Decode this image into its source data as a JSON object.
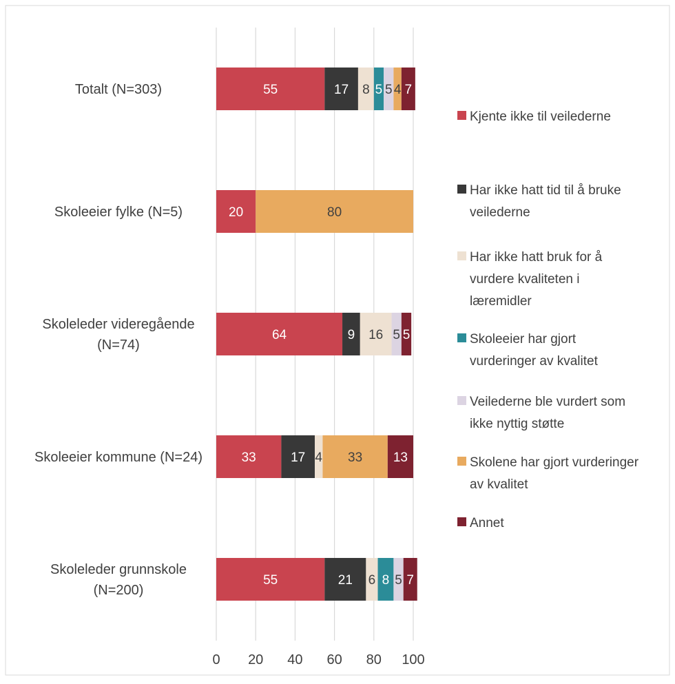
{
  "chart_data": {
    "type": "bar",
    "orientation": "horizontal",
    "stacked": true,
    "categories": [
      [
        "Totalt (N=303)"
      ],
      [
        "Skoleeier fylke (N=5)"
      ],
      [
        "Skoleleder videregående",
        "(N=74)"
      ],
      [
        "Skoleeier kommune (N=24)"
      ],
      [
        "Skoleleder grunnskole",
        "(N=200)"
      ]
    ],
    "series": [
      {
        "name": [
          "Kjente ikke til veilederne"
        ],
        "color": "#C9444F",
        "label_color": "#ffffff",
        "values": [
          55,
          20,
          64,
          33,
          55
        ]
      },
      {
        "name": [
          "Har ikke hatt tid til å bruke",
          "veilederne"
        ],
        "color": "#383838",
        "label_color": "#ffffff",
        "values": [
          17,
          0,
          9,
          17,
          21
        ]
      },
      {
        "name": [
          "Har ikke hatt bruk for å",
          "vurdere kvaliteten i",
          "læremidler"
        ],
        "color": "#EEE1D2",
        "label_color": "#404040",
        "values": [
          8,
          0,
          16,
          4,
          6
        ]
      },
      {
        "name": [
          "Skoleeier har gjort",
          "vurderinger av kvalitet"
        ],
        "color": "#2B8C98",
        "label_color": "#ffffff",
        "values": [
          5,
          0,
          0,
          0,
          8
        ]
      },
      {
        "name": [
          "Veilederne ble vurdert som",
          "ikke nyttig støtte"
        ],
        "color": "#DCD4E2",
        "label_color": "#404040",
        "values": [
          5,
          0,
          5,
          0,
          5
        ]
      },
      {
        "name": [
          "Skolene har gjort vurderinger",
          "av kvalitet"
        ],
        "color": "#E8AA5F",
        "label_color": "#404040",
        "values": [
          4,
          80,
          0,
          33,
          0
        ]
      },
      {
        "name": [
          "Annet"
        ],
        "color": "#7E2230",
        "label_color": "#ffffff",
        "values": [
          7,
          0,
          5,
          13,
          7
        ]
      }
    ],
    "xlim": [
      0,
      100
    ],
    "xticks": [
      "0",
      "20",
      "40",
      "60",
      "80",
      "100"
    ],
    "grid": true,
    "legend_position": "right",
    "title": "",
    "xlabel": "",
    "ylabel": ""
  }
}
